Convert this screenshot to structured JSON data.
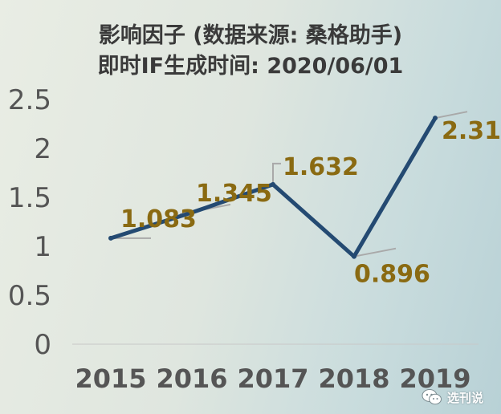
{
  "chart_data": {
    "type": "line",
    "title": "影响因子 (数据来源: 桑格助手)",
    "subtitle": "即时IF生成时间: 2020/06/01",
    "categories": [
      "2015",
      "2016",
      "2017",
      "2018",
      "2019"
    ],
    "values": [
      1.083,
      1.345,
      1.632,
      0.896,
      2.31
    ],
    "value_labels": [
      "1.083",
      "1.345",
      "1.632",
      "0.896",
      "2.31"
    ],
    "y_ticks": [
      "0",
      "0.5",
      "1",
      "1.5",
      "2",
      "2.5"
    ],
    "y_tick_values": [
      0,
      0.5,
      1,
      1.5,
      2,
      2.5
    ],
    "ylim": [
      0,
      2.5
    ],
    "grid": false,
    "colors": {
      "line": "#244a72",
      "value_label": "#8a6a12",
      "tick_label": "#555555",
      "leader": "#a9a9a9"
    }
  },
  "watermark": {
    "icon": "wechat-icon",
    "text": "选刊说"
  }
}
